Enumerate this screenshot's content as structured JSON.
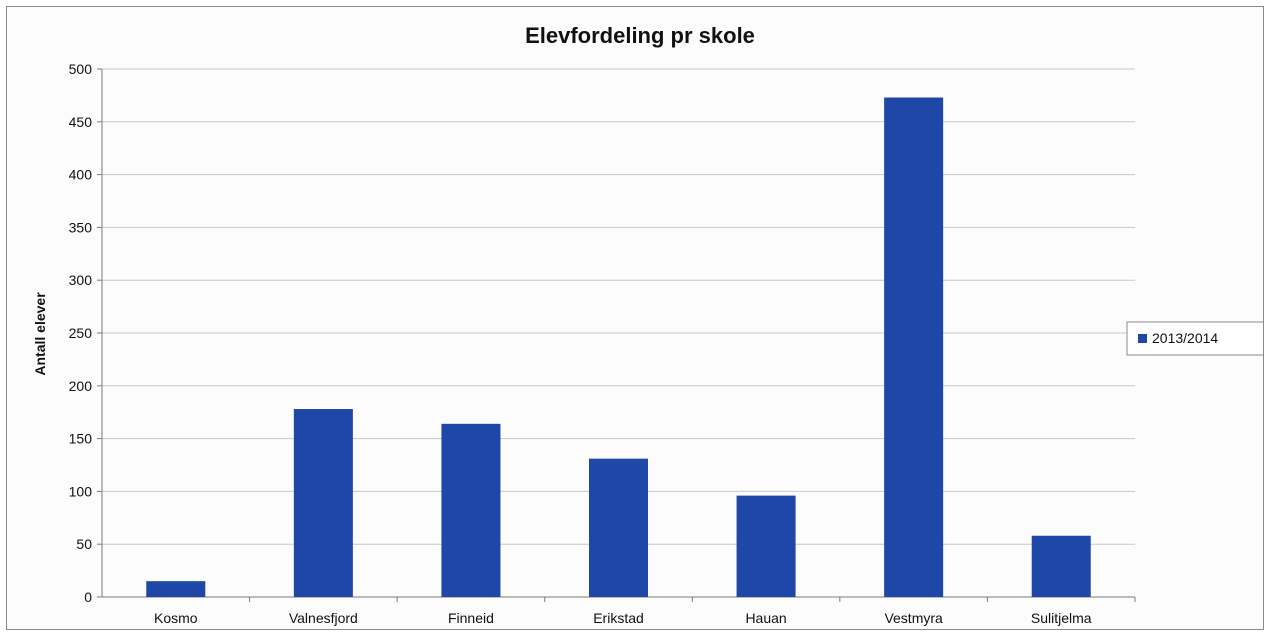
{
  "chart_data": {
    "type": "bar",
    "title": "Elevfordeling pr skole",
    "xlabel": "",
    "ylabel": "Antall elever",
    "categories": [
      "Kosmo",
      "Valnesfjord",
      "Finneid",
      "Erikstad",
      "Hauan",
      "Vestmyra",
      "Sulitjelma"
    ],
    "series": [
      {
        "name": "2013/2014",
        "values": [
          15,
          178,
          164,
          131,
          96,
          473,
          58
        ],
        "color": "#1f47a8"
      }
    ],
    "ylim": [
      0,
      500
    ],
    "yticks": [
      0,
      50,
      100,
      150,
      200,
      250,
      300,
      350,
      400,
      450,
      500
    ],
    "grid": true,
    "legend_position": "right"
  }
}
